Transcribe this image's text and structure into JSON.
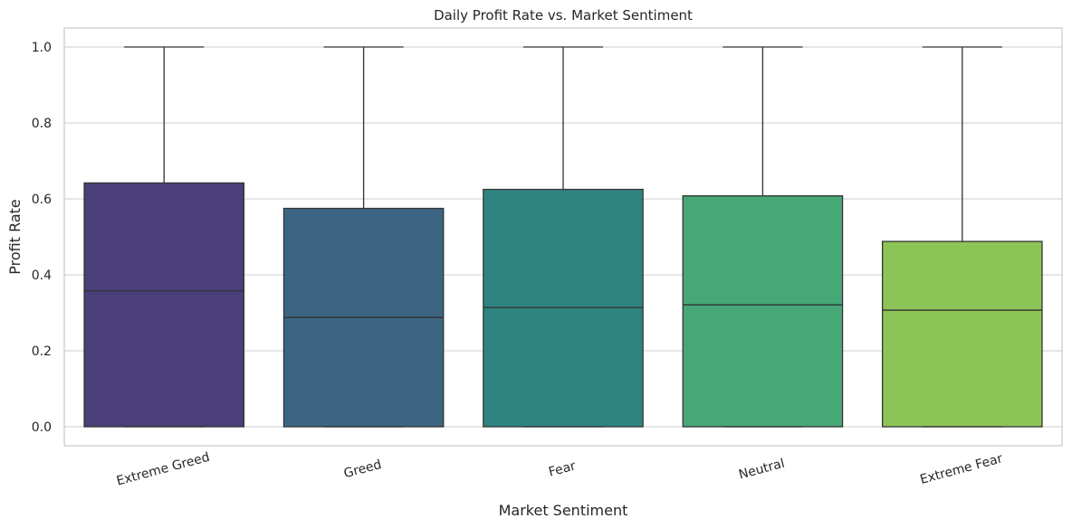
{
  "chart_data": {
    "type": "box",
    "title": "Daily Profit Rate vs. Market Sentiment",
    "xlabel": "Market Sentiment",
    "ylabel": "Profit Rate",
    "ylim": [
      -0.05,
      1.05
    ],
    "yticks": [
      0.0,
      0.2,
      0.4,
      0.6,
      0.8,
      1.0
    ],
    "ytick_labels": [
      "0.0",
      "0.2",
      "0.4",
      "0.6",
      "0.8",
      "1.0"
    ],
    "grid": true,
    "categories": [
      "Extreme Greed",
      "Greed",
      "Fear",
      "Neutral",
      "Extreme Fear"
    ],
    "boxes": [
      {
        "category": "Extreme Greed",
        "min": 0.0,
        "q1": 0.0,
        "median": 0.358,
        "q3": 0.642,
        "max": 1.0,
        "color": "#4a3f78"
      },
      {
        "category": "Greed",
        "min": 0.0,
        "q1": 0.0,
        "median": 0.288,
        "q3": 0.575,
        "max": 1.0,
        "color": "#3d6583"
      },
      {
        "category": "Fear",
        "min": 0.0,
        "q1": 0.0,
        "median": 0.314,
        "q3": 0.625,
        "max": 1.0,
        "color": "#2e837f"
      },
      {
        "category": "Neutral",
        "min": 0.0,
        "q1": 0.0,
        "median": 0.321,
        "q3": 0.608,
        "max": 1.0,
        "color": "#47a777"
      },
      {
        "category": "Extreme Fear",
        "min": 0.0,
        "q1": 0.0,
        "median": 0.307,
        "q3": 0.488,
        "max": 1.0,
        "color": "#8dc457"
      }
    ]
  }
}
